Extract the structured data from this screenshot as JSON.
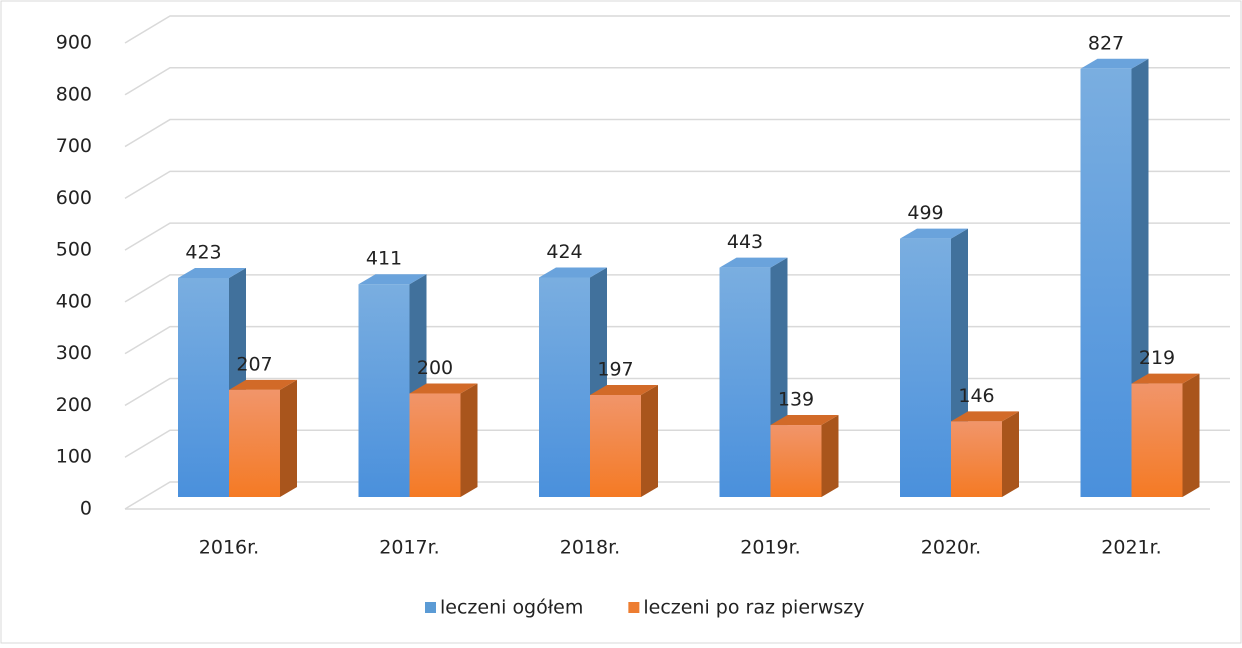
{
  "chart_data": {
    "type": "bar3d",
    "categories": [
      "2016r.",
      "2017r.",
      "2018r.",
      "2019r.",
      "2020r.",
      "2021r."
    ],
    "series": [
      {
        "name": "leczeni ogółem",
        "color": "#5b9bd5",
        "values": [
          423,
          411,
          424,
          443,
          499,
          827
        ]
      },
      {
        "name": "leczeni po raz pierwszy",
        "color": "#ed7d31",
        "values": [
          207,
          200,
          197,
          139,
          146,
          219
        ]
      }
    ],
    "ylim": [
      0,
      900
    ],
    "yticks": [
      0,
      100,
      200,
      300,
      400,
      500,
      600,
      700,
      800,
      900
    ],
    "grid": true,
    "legend": "bottom"
  }
}
